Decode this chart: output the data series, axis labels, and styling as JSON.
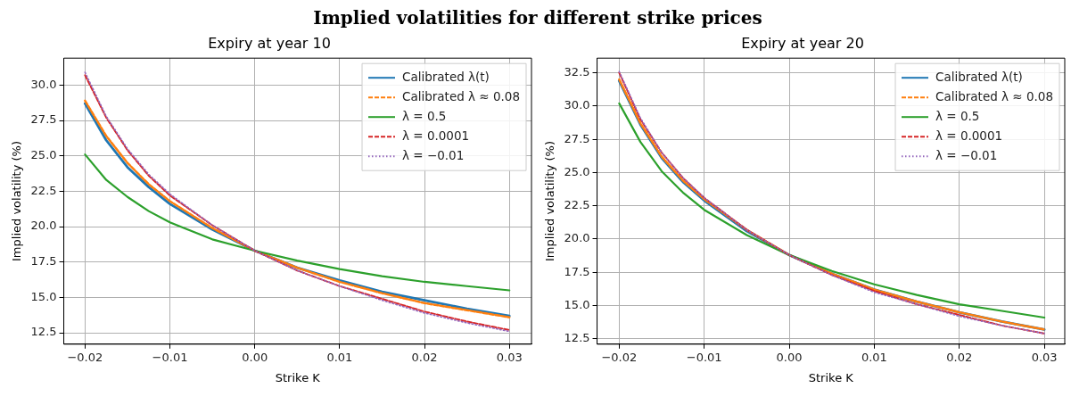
{
  "chart_data": [
    {
      "type": "line",
      "title": "Expiry at year 10",
      "annotations": [
        "Implied volatilities for different strike prices"
      ],
      "xlabel": "Strike K",
      "ylabel": "Implied volatility (%)",
      "x": [
        -0.02,
        -0.0175,
        -0.015,
        -0.0125,
        -0.01,
        -0.005,
        0,
        0.005,
        0.01,
        0.015,
        0.02,
        0.025,
        0.03
      ],
      "series": [
        {
          "name": "Calibrated λ(t)",
          "color": "#1f77b4",
          "line_style": "solid",
          "values": [
            28.7,
            26.1,
            24.2,
            22.8,
            21.6,
            19.8,
            18.3,
            17.1,
            16.2,
            15.4,
            14.8,
            14.2,
            13.7
          ]
        },
        {
          "name": "Calibrated λ ≈ 0.08",
          "color": "#ff7f0e",
          "line_style": "dashed",
          "values": [
            28.9,
            26.4,
            24.5,
            23.0,
            21.8,
            19.9,
            18.3,
            17.1,
            16.1,
            15.3,
            14.6,
            14.1,
            13.6
          ]
        },
        {
          "name": "λ = 0.5",
          "color": "#2ca02c",
          "line_style": "solid",
          "values": [
            25.1,
            23.3,
            22.1,
            21.1,
            20.3,
            19.1,
            18.3,
            17.6,
            17.0,
            16.5,
            16.1,
            15.8,
            15.5
          ]
        },
        {
          "name": "λ = 0.0001",
          "color": "#d62728",
          "line_style": "dashed",
          "values": [
            30.7,
            27.7,
            25.4,
            23.6,
            22.2,
            20.1,
            18.3,
            16.9,
            15.8,
            14.9,
            14.0,
            13.3,
            12.7
          ]
        },
        {
          "name": "λ = −0.01",
          "color": "#9467bd",
          "line_style": "dotted",
          "values": [
            30.9,
            27.8,
            25.5,
            23.7,
            22.3,
            20.1,
            18.3,
            16.9,
            15.8,
            14.8,
            13.9,
            13.2,
            12.6
          ]
        }
      ],
      "xlim": [
        -0.0225,
        0.0326
      ],
      "ylim": [
        11.7,
        31.9
      ],
      "xticks": [
        {
          "value": -0.02,
          "label": "−0.02"
        },
        {
          "value": -0.01,
          "label": "−0.01"
        },
        {
          "value": 0,
          "label": "0.00"
        },
        {
          "value": 0.01,
          "label": "0.01"
        },
        {
          "value": 0.02,
          "label": "0.02"
        },
        {
          "value": 0.03,
          "label": "0.03"
        }
      ],
      "yticks": [
        12.5,
        {
          "value": 15,
          "label": "15.0"
        },
        17.5,
        {
          "value": 20,
          "label": "20.0"
        },
        22.5,
        {
          "value": 25,
          "label": "25.0"
        },
        27.5,
        {
          "value": 30,
          "label": "30.0"
        }
      ],
      "grid": true,
      "legend": "top right",
      "marker": "none"
    },
    {
      "type": "line",
      "title": "Expiry at year 20",
      "xlabel": "Strike K",
      "ylabel": "Implied volatility (%)",
      "x": [
        -0.02,
        -0.0175,
        -0.015,
        -0.0125,
        -0.01,
        -0.005,
        0,
        0.005,
        0.01,
        0.015,
        0.02,
        0.025,
        0.03
      ],
      "series": [
        {
          "name": "Calibrated λ(t)",
          "color": "#1f77b4",
          "line_style": "solid",
          "values": [
            31.9,
            28.6,
            26.1,
            24.3,
            22.9,
            20.6,
            18.8,
            17.4,
            16.2,
            15.3,
            14.5,
            13.8,
            13.2
          ]
        },
        {
          "name": "Calibrated λ ≈ 0.08",
          "color": "#ff7f0e",
          "line_style": "dashed",
          "values": [
            32.0,
            28.7,
            26.2,
            24.4,
            23.0,
            20.7,
            18.8,
            17.4,
            16.2,
            15.3,
            14.5,
            13.8,
            13.2
          ]
        },
        {
          "name": "λ = 0.5",
          "color": "#2ca02c",
          "line_style": "solid",
          "values": [
            30.2,
            27.3,
            25.1,
            23.5,
            22.2,
            20.3,
            18.8,
            17.6,
            16.6,
            15.8,
            15.1,
            14.6,
            14.1
          ]
        },
        {
          "name": "λ = 0.0001",
          "color": "#d62728",
          "line_style": "dashed",
          "values": [
            32.5,
            29.0,
            26.5,
            24.6,
            23.1,
            20.7,
            18.8,
            17.3,
            16.1,
            15.1,
            14.3,
            13.5,
            12.9
          ]
        },
        {
          "name": "λ = −0.01",
          "color": "#9467bd",
          "line_style": "dotted",
          "values": [
            32.6,
            29.1,
            26.5,
            24.6,
            23.1,
            20.7,
            18.8,
            17.3,
            16.0,
            15.1,
            14.2,
            13.5,
            12.9
          ]
        }
      ],
      "xlim": [
        -0.0226,
        0.0324
      ],
      "ylim": [
        12.1,
        33.6
      ],
      "xticks": [
        {
          "value": -0.02,
          "label": "−0.02"
        },
        {
          "value": -0.01,
          "label": "−0.01"
        },
        {
          "value": 0,
          "label": "0.00"
        },
        {
          "value": 0.01,
          "label": "0.01"
        },
        {
          "value": 0.02,
          "label": "0.02"
        },
        {
          "value": 0.03,
          "label": "0.03"
        }
      ],
      "yticks": [
        12.5,
        {
          "value": 15,
          "label": "15.0"
        },
        17.5,
        {
          "value": 20,
          "label": "20.0"
        },
        22.5,
        {
          "value": 25,
          "label": "25.0"
        },
        27.5,
        {
          "value": 30,
          "label": "30.0"
        },
        32.5
      ],
      "grid": true,
      "legend": "top right",
      "marker": "none"
    }
  ]
}
